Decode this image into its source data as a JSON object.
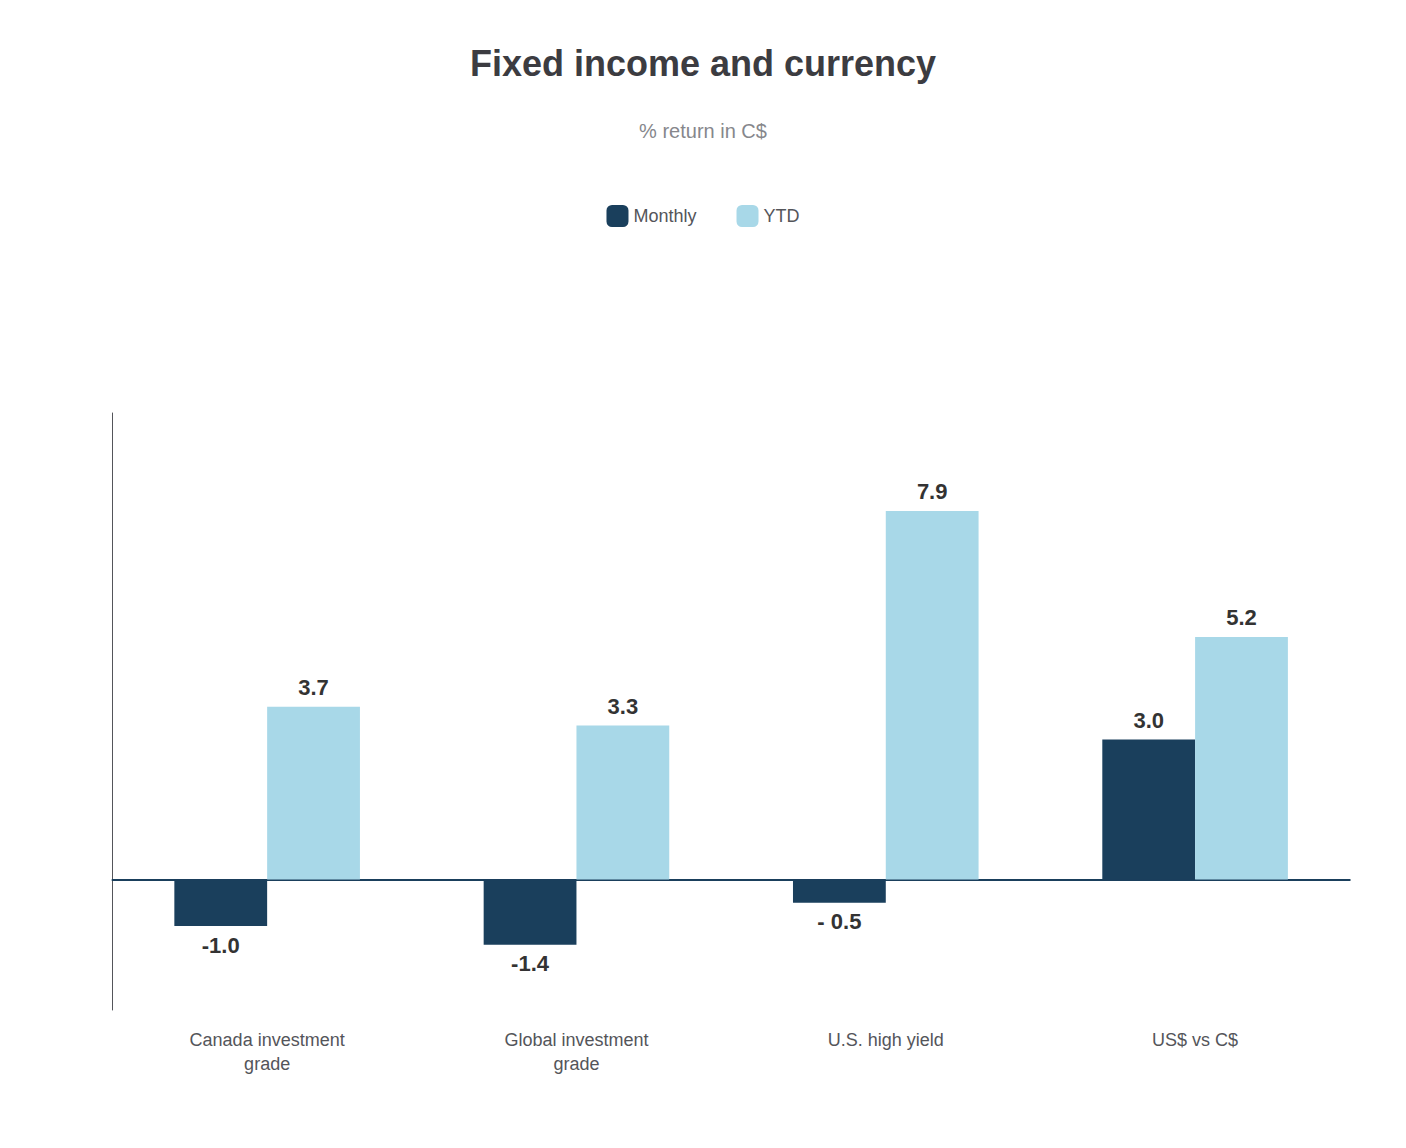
{
  "chart_data": {
    "type": "bar",
    "title": "Fixed income and currency",
    "subtitle": "% return in C$",
    "categories": [
      "Canada investment\ngrade",
      "Global investment\ngrade",
      "U.S. high yield",
      "US$ vs C$"
    ],
    "series": [
      {
        "name": "Monthly",
        "color": "#1a3f5c",
        "values": [
          -1.0,
          -1.4,
          -0.5,
          3.0
        ],
        "value_labels": [
          "-1.0",
          "-1.4",
          "- 0.5",
          "3.0"
        ]
      },
      {
        "name": "YTD",
        "color": "#a8d8e8",
        "values": [
          3.7,
          3.3,
          7.9,
          5.2
        ],
        "value_labels": [
          "3.7",
          "3.3",
          "7.9",
          "5.2"
        ]
      }
    ],
    "ylim": [
      -2.8,
      10.0
    ],
    "yticks": [],
    "tick_labels": "x",
    "data_labels": true,
    "grid": false,
    "legend": "top"
  }
}
